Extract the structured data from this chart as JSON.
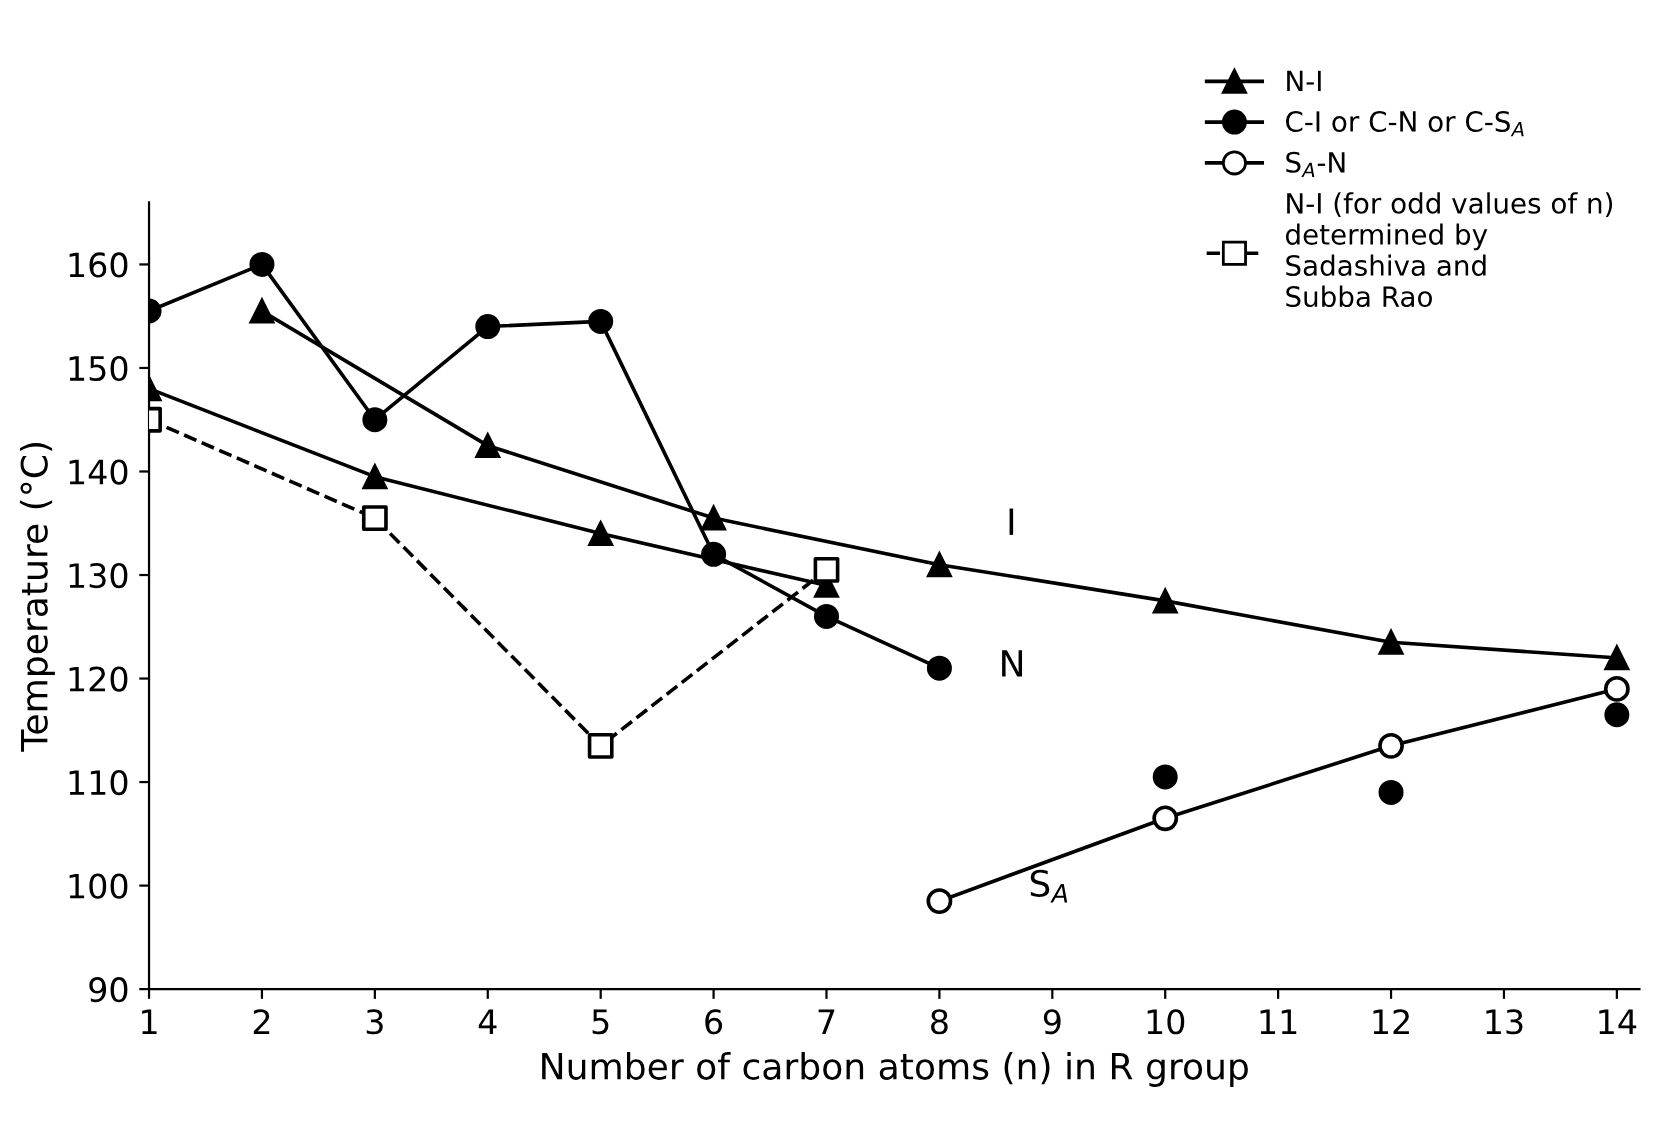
{
  "chart_data": {
    "type": "line",
    "xlabel": "Number of carbon atoms (n) in R group",
    "ylabel": "Temperature (°C)",
    "xlim": [
      1,
      14.2
    ],
    "xticks": [
      1,
      2,
      3,
      4,
      5,
      6,
      7,
      8,
      9,
      10,
      11,
      12,
      13,
      14
    ],
    "ylim": [
      90,
      166
    ],
    "yticks": [
      90,
      100,
      110,
      120,
      130,
      140,
      150,
      160
    ],
    "grid": false,
    "legend": "top right",
    "series": [
      {
        "name": "N-I",
        "color": "#000000",
        "marker": "triangle",
        "line_style": "solid",
        "x": [
          2,
          4,
          6,
          8,
          10,
          12,
          14
        ],
        "values": [
          155.5,
          142.5,
          135.5,
          131,
          127.5,
          123.5,
          122
        ]
      },
      {
        "color": "#000000",
        "marker": "triangle",
        "line_style": "solid",
        "x": [
          1,
          3,
          5,
          7
        ],
        "values": [
          148,
          139.5,
          134,
          129
        ]
      },
      {
        "name": "C-I or C-N or C-S$_{A}$",
        "color": "#000000",
        "marker": "circle",
        "line_style": "solid",
        "x": [
          1,
          2,
          3,
          4,
          5,
          6,
          7,
          8,
          9,
          10,
          11,
          12,
          13,
          14
        ],
        "values": [
          155.5,
          160,
          145,
          154,
          154.5,
          132,
          126,
          121,
          null,
          110.5,
          null,
          109,
          null,
          116.5
        ]
      },
      {
        "name": "S$_{A}$-N",
        "color": "#000000",
        "marker": "circle",
        "colors": [
          "#ffffff",
          "#ffffff",
          "#ffffff",
          "#ffffff"
        ],
        "line_style": "solid",
        "x": [
          8,
          10,
          12,
          14
        ],
        "values": [
          98.5,
          106.5,
          113.5,
          119
        ]
      },
      {
        "name": "N-I (for odd values of n)\ndetermined by\nSadashiva and\nSubba Rao",
        "color": "#000000",
        "marker": "square",
        "colors": [
          "#ffffff",
          "#ffffff",
          "#ffffff",
          "#ffffff"
        ],
        "line_style": "dashed",
        "x": [
          1,
          3,
          5,
          7
        ],
        "values": [
          145,
          135.5,
          113.5,
          130.5
        ]
      }
    ],
    "annotations": [
      "I",
      "N",
      "S$_{A}$"
    ]
  }
}
